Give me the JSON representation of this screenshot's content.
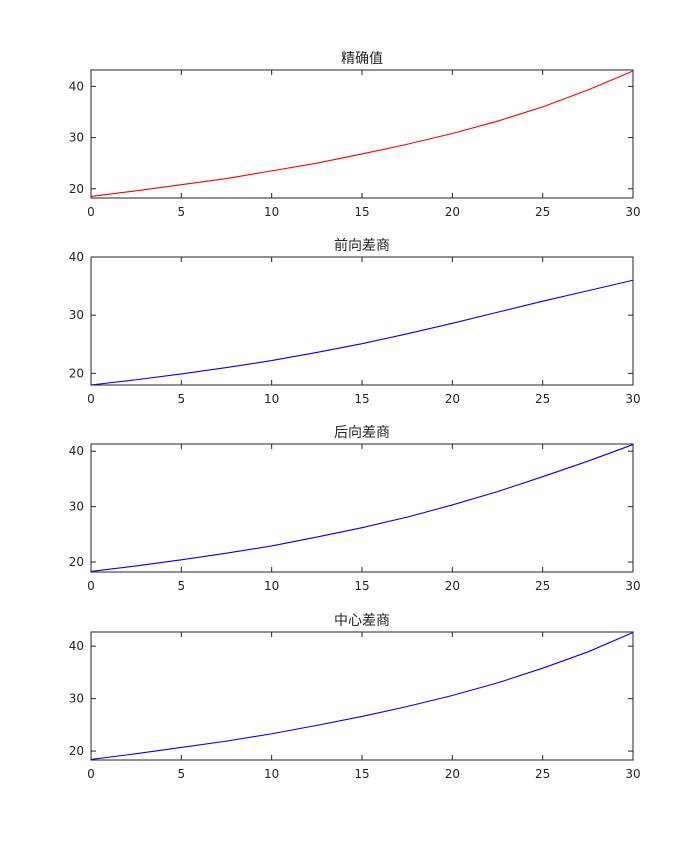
{
  "chart_data": [
    {
      "type": "line",
      "title": "精确值",
      "xlim": [
        0,
        30
      ],
      "ylim": [
        18.2,
        43.2
      ],
      "xticks": [
        0,
        5,
        10,
        15,
        20,
        25,
        30
      ],
      "yticks": [
        20,
        30,
        40
      ],
      "series": [
        {
          "color": "#ff0000",
          "x": [
            0,
            2.5,
            5,
            7.5,
            10,
            12.5,
            15,
            17.5,
            20,
            22.5,
            25,
            27.5,
            30
          ],
          "y": [
            18.5,
            19.6,
            20.8,
            22.0,
            23.5,
            25.0,
            26.8,
            28.7,
            30.8,
            33.2,
            36.0,
            39.3,
            43.0
          ]
        }
      ]
    },
    {
      "type": "line",
      "title": "前向差商",
      "xlim": [
        0,
        30
      ],
      "ylim": [
        18,
        40
      ],
      "xticks": [
        0,
        5,
        10,
        15,
        20,
        25,
        30
      ],
      "yticks": [
        20,
        30,
        40
      ],
      "series": [
        {
          "color": "#0000ff",
          "x": [
            0,
            2.5,
            5,
            7.5,
            10,
            12.5,
            15,
            17.5,
            20,
            22.5,
            25,
            27.5,
            30
          ],
          "y": [
            18.0,
            18.9,
            19.9,
            21.0,
            22.2,
            23.6,
            25.1,
            26.8,
            28.6,
            30.5,
            32.4,
            34.2,
            36.0
          ]
        }
      ]
    },
    {
      "type": "line",
      "title": "后向差商",
      "xlim": [
        0,
        30
      ],
      "ylim": [
        18.2,
        41.3
      ],
      "xticks": [
        0,
        5,
        10,
        15,
        20,
        25,
        30
      ],
      "yticks": [
        20,
        30,
        40
      ],
      "series": [
        {
          "color": "#0000ff",
          "x": [
            0,
            2.5,
            5,
            7.5,
            10,
            12.5,
            15,
            17.5,
            20,
            22.5,
            25,
            27.5,
            30
          ],
          "y": [
            18.3,
            19.3,
            20.4,
            21.6,
            22.9,
            24.5,
            26.2,
            28.1,
            30.3,
            32.7,
            35.4,
            38.2,
            41.2
          ]
        }
      ]
    },
    {
      "type": "line",
      "title": "中心差商",
      "xlim": [
        0,
        30
      ],
      "ylim": [
        18.3,
        42.7
      ],
      "xticks": [
        0,
        5,
        10,
        15,
        20,
        25,
        30
      ],
      "yticks": [
        20,
        30,
        40
      ],
      "series": [
        {
          "color": "#0000ff",
          "x": [
            0,
            2.5,
            5,
            7.5,
            10,
            12.5,
            15,
            17.5,
            20,
            22.5,
            25,
            27.5,
            30
          ],
          "y": [
            18.4,
            19.5,
            20.7,
            21.9,
            23.3,
            24.9,
            26.6,
            28.5,
            30.6,
            33.0,
            35.8,
            38.9,
            42.6
          ]
        }
      ]
    }
  ]
}
